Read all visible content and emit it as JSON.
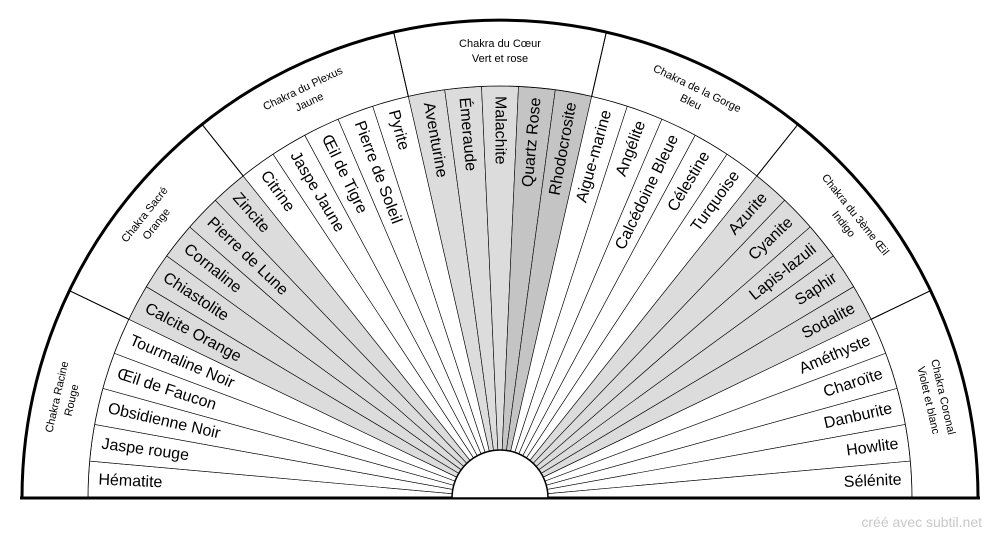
{
  "colors": {
    "shade1": "#dcdcdc",
    "shade2": "#c4c4c4",
    "white": "#ffffff",
    "stroke": "#000000"
  },
  "chakras": [
    {
      "name": "Chakra Racine",
      "color": "Rouge",
      "stones": [
        "Hématite",
        "Jaspe rouge",
        "Obsidienne Noir",
        "Œil de Faucon",
        "Tourmaline Noir"
      ],
      "shade": "white"
    },
    {
      "name": "Chakra Sacré",
      "color": "Orange",
      "stones": [
        "Calcite Orange",
        "Chiastolite",
        "Cornaline",
        "Pierre de Lune",
        "Zincite"
      ],
      "shade": "shade1"
    },
    {
      "name": "Chakra du Plexus",
      "color": "Jaune",
      "stones": [
        "Citrine",
        "Jaspe Jaune",
        "Œil de Tigre",
        "Pierre de Soleil",
        "Pyrite"
      ],
      "shade": "white"
    },
    {
      "name": "Chakra du Cœur",
      "color": "Vert et rose",
      "stones": [
        "Aventurine",
        "Émeraude",
        "Malachite",
        "Quartz Rose",
        "Rhodocrosite"
      ],
      "shade": "heart"
    },
    {
      "name": "Chakra de la Gorge",
      "color": "Bleu",
      "stones": [
        "Aigue-marine",
        "Angélite",
        "Calcédoine Bleue",
        "Célestine",
        "Turquoise"
      ],
      "shade": "white"
    },
    {
      "name": "Chakra du 3ème Œil",
      "color": "Indigo",
      "stones": [
        "Azurite",
        "Cyanite",
        "Lapis-lazuli",
        "Saphir",
        "Sodalite"
      ],
      "shade": "shade1"
    },
    {
      "name": "Chakra Coronal",
      "color": "Violet et blanc",
      "stones": [
        "Améthyste",
        "Charoïte",
        "Danburite",
        "Howlite",
        "Sélénite"
      ],
      "shade": "white"
    }
  ],
  "credit": "créé avec subtil.net"
}
